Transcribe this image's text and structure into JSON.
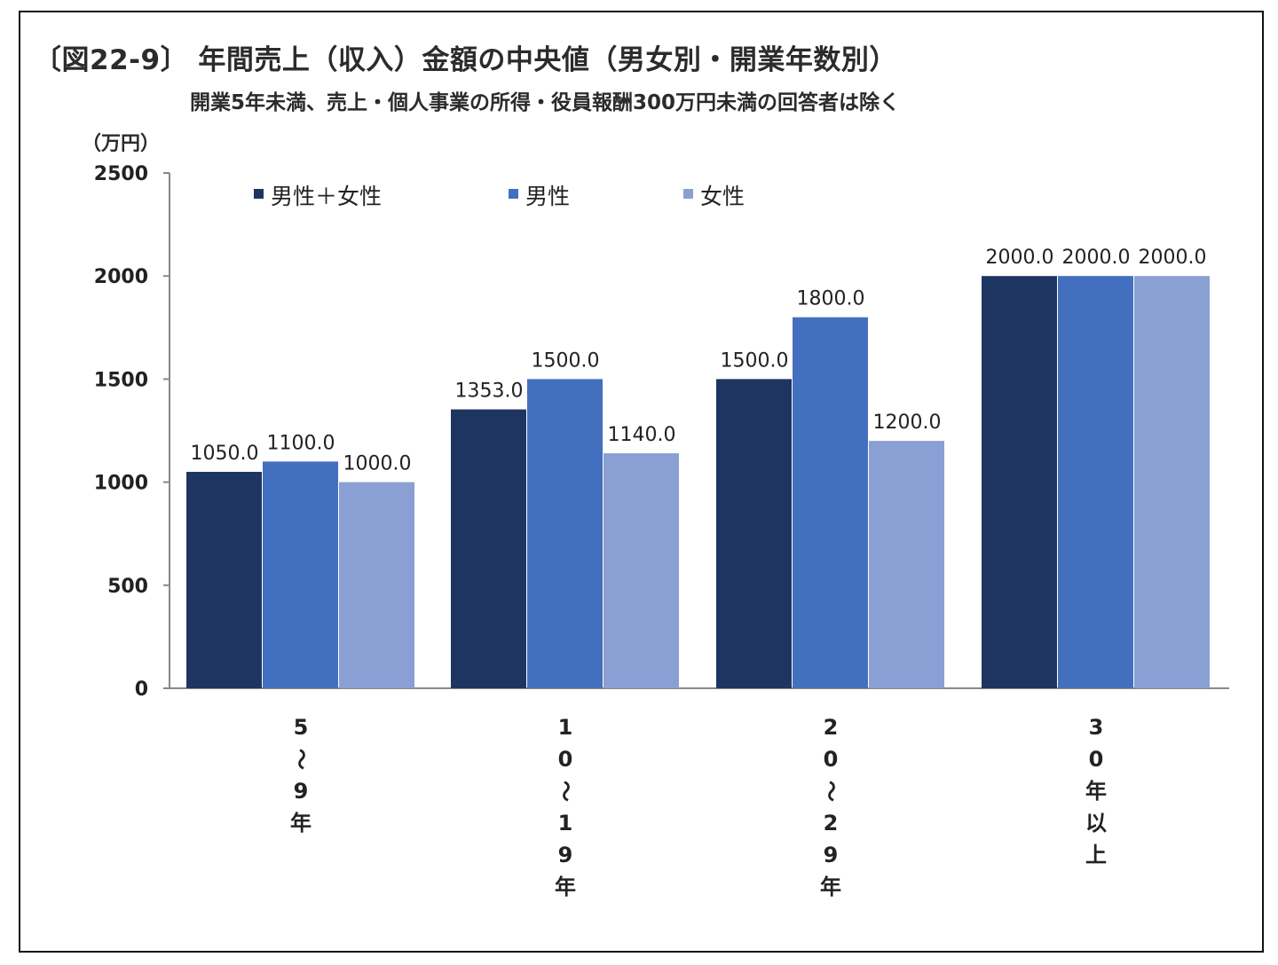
{
  "title": "〔図22-9〕 年間売上（収入）金額の中央値（男女別・開業年数別）",
  "subtitle": "開業5年未満、売上・個人事業の所得・役員報酬300万円未満の回答者は除く",
  "colors": {
    "total": "#1f3561",
    "male": "#4370be",
    "female": "#8a9fd3",
    "axis": "#888888"
  },
  "chart_data": {
    "type": "bar",
    "title": "〔図22-9〕 年間売上（収入）金額の中央値（男女別・開業年数別）",
    "subtitle": "開業5年未満、売上・個人事業の所得・役員報酬300万円未満の回答者は除く",
    "ylabel": "（万円）",
    "xlabel": "",
    "ylim": [
      0,
      2500
    ],
    "yticks": [
      "0",
      "500",
      "1000",
      "1500",
      "2000",
      "2500"
    ],
    "categories": [
      "5〜9年",
      "10〜19年",
      "20〜29年",
      "30年以上"
    ],
    "category_chars": [
      [
        "5",
        "〜",
        "9",
        "年"
      ],
      [
        "1",
        "0",
        "〜",
        "1",
        "9",
        "年"
      ],
      [
        "2",
        "0",
        "〜",
        "2",
        "9",
        "年"
      ],
      [
        "3",
        "0",
        "年",
        "以",
        "上"
      ]
    ],
    "series": [
      {
        "name": "男性＋女性",
        "values": [
          1050.0,
          1353.0,
          1500.0,
          2000.0
        ],
        "labels": [
          "1050.0",
          "1353.0",
          "1500.0",
          "2000.0"
        ]
      },
      {
        "name": "男性",
        "values": [
          1100.0,
          1500.0,
          1800.0,
          2000.0
        ],
        "labels": [
          "1100.0",
          "1500.0",
          "1800.0",
          "2000.0"
        ]
      },
      {
        "name": "女性",
        "values": [
          1000.0,
          1140.0,
          1200.0,
          2000.0
        ],
        "labels": [
          "1000.0",
          "1140.0",
          "1200.0",
          "2000.0"
        ]
      }
    ],
    "legend_position": "top",
    "grid": false
  }
}
